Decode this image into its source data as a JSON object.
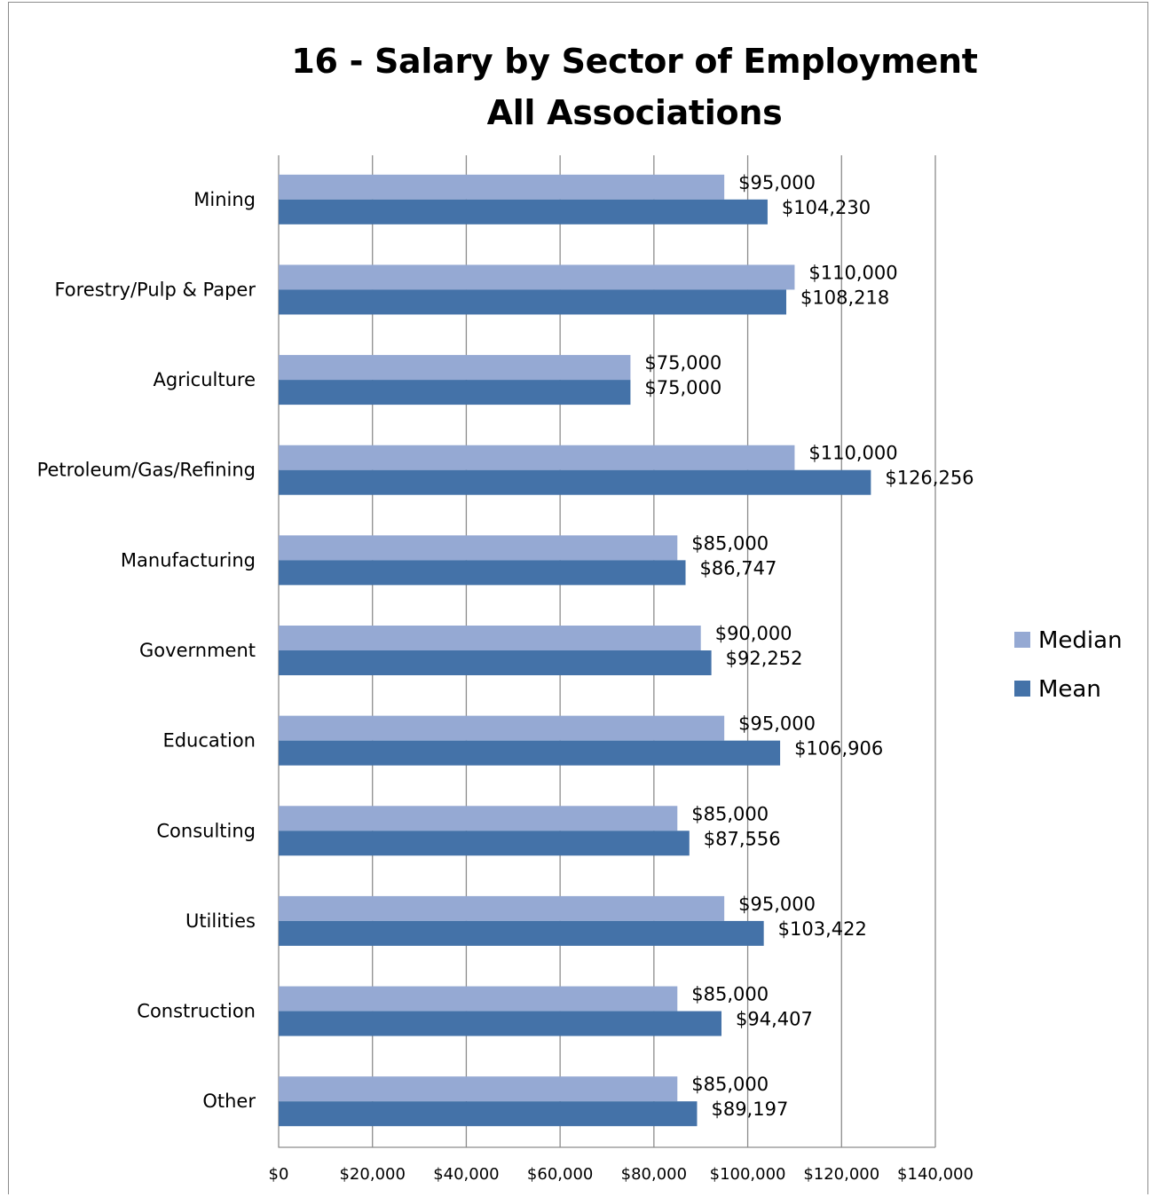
{
  "chart_data": {
    "type": "bar",
    "orientation": "horizontal",
    "title_lines": [
      "16 - Salary by Sector of Employment",
      "All Associations"
    ],
    "categories": [
      "Mining",
      "Forestry/Pulp & Paper",
      "Agriculture",
      "Petroleum/Gas/Refining",
      "Manufacturing",
      "Government",
      "Education",
      "Consulting",
      "Utilities",
      "Construction",
      "Other"
    ],
    "series": [
      {
        "name": "Median",
        "color": "#95a9d3",
        "values": [
          95000,
          110000,
          75000,
          110000,
          85000,
          90000,
          95000,
          85000,
          95000,
          85000,
          85000
        ],
        "labels": [
          "$95,000",
          "$110,000",
          "$75,000",
          "$110,000",
          "$85,000",
          "$90,000",
          "$95,000",
          "$85,000",
          "$95,000",
          "$85,000",
          "$85,000"
        ]
      },
      {
        "name": "Mean",
        "color": "#4472a8",
        "values": [
          104230,
          108218,
          75000,
          126256,
          86747,
          92252,
          106906,
          87556,
          103422,
          94407,
          89197
        ],
        "labels": [
          "$104,230",
          "$108,218",
          "$75,000",
          "$126,256",
          "$86,747",
          "$92,252",
          "$106,906",
          "$87,556",
          "$103,422",
          "$94,407",
          "$89,197"
        ]
      }
    ],
    "xlim": [
      0,
      140000
    ],
    "x_ticks": [
      0,
      20000,
      40000,
      60000,
      80000,
      100000,
      120000,
      140000
    ],
    "x_tick_labels": [
      "$0",
      "$20,000",
      "$40,000",
      "$60,000",
      "$80,000",
      "$100,000",
      "$120,000",
      "$140,000"
    ],
    "grid": "vertical",
    "legend_position": "right"
  }
}
